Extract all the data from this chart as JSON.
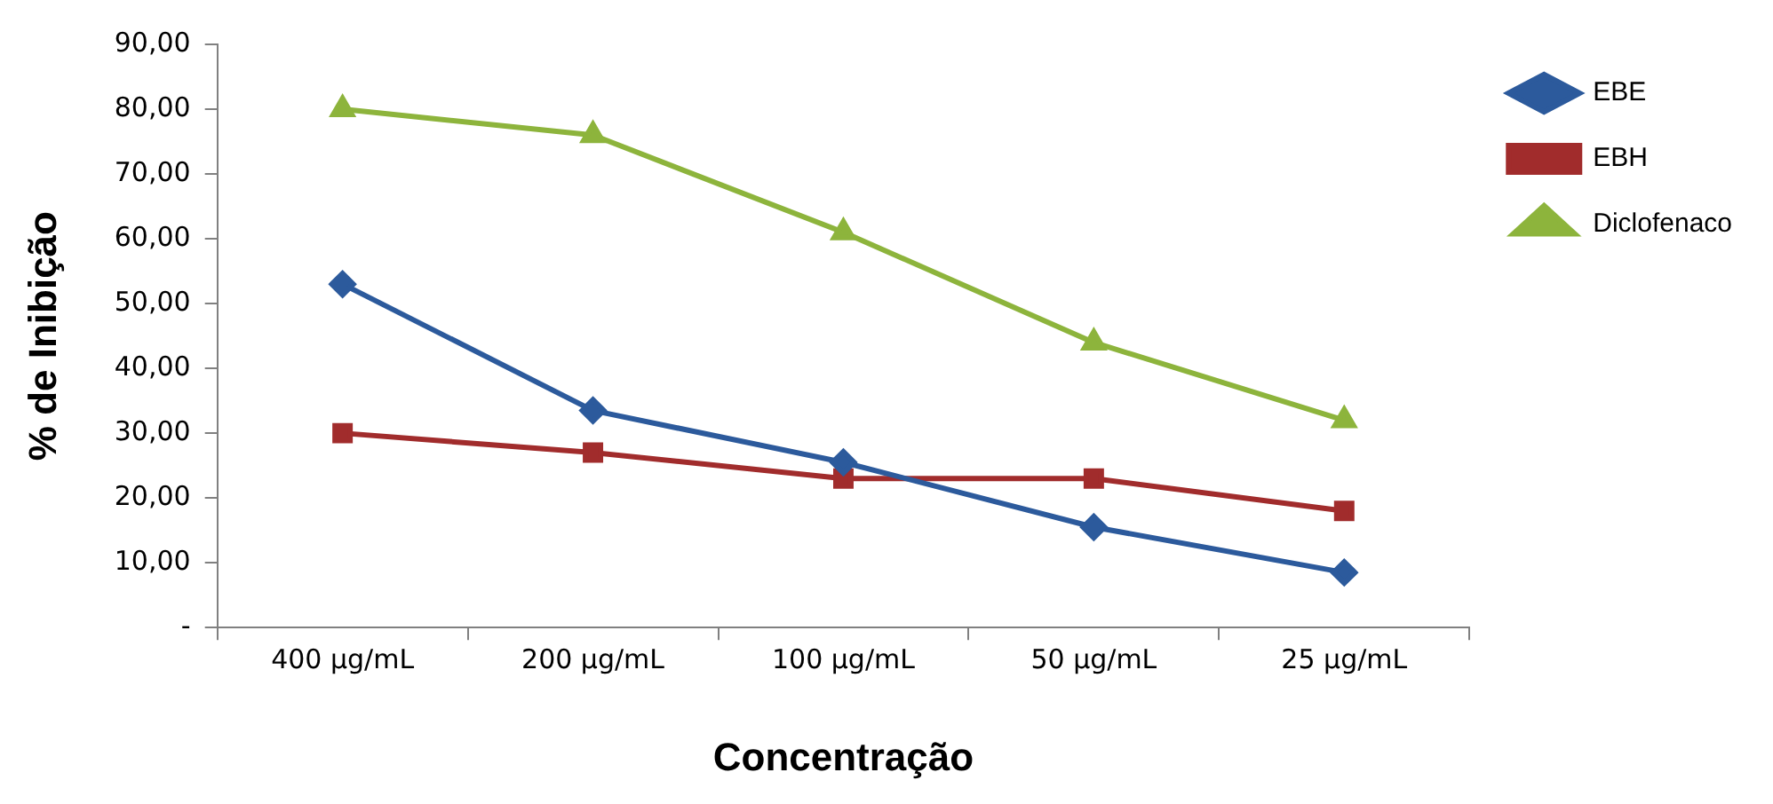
{
  "chart_data": {
    "type": "line",
    "xlabel": "Concentração",
    "ylabel": "% de Inibição",
    "categories": [
      "400 µg/mL",
      "200 µg/mL",
      "100 µg/mL",
      "50 µg/mL",
      "25 µg/mL"
    ],
    "series": [
      {
        "name": "EBE",
        "color": "#2c5a9c",
        "marker": "diamond",
        "values": [
          53,
          33.5,
          25.5,
          15.5,
          8.5
        ]
      },
      {
        "name": "EBH",
        "color": "#a12c2c",
        "marker": "square",
        "values": [
          30,
          27,
          23,
          23,
          18
        ]
      },
      {
        "name": "Diclofenaco",
        "color": "#8db43c",
        "marker": "triangle",
        "values": [
          80,
          76,
          61,
          44,
          32
        ]
      }
    ],
    "ylim": [
      0,
      90
    ],
    "yticks": [
      {
        "value": 0,
        "label": "-"
      },
      {
        "value": 10,
        "label": "10,00"
      },
      {
        "value": 20,
        "label": "20,00"
      },
      {
        "value": 30,
        "label": "30,00"
      },
      {
        "value": 40,
        "label": "40,00"
      },
      {
        "value": 50,
        "label": "50,00"
      },
      {
        "value": 60,
        "label": "60,00"
      },
      {
        "value": 70,
        "label": "70,00"
      },
      {
        "value": 80,
        "label": "80,00"
      },
      {
        "value": 90,
        "label": "90,00"
      }
    ],
    "grid": false,
    "legend": "right",
    "line_style": "solid"
  }
}
